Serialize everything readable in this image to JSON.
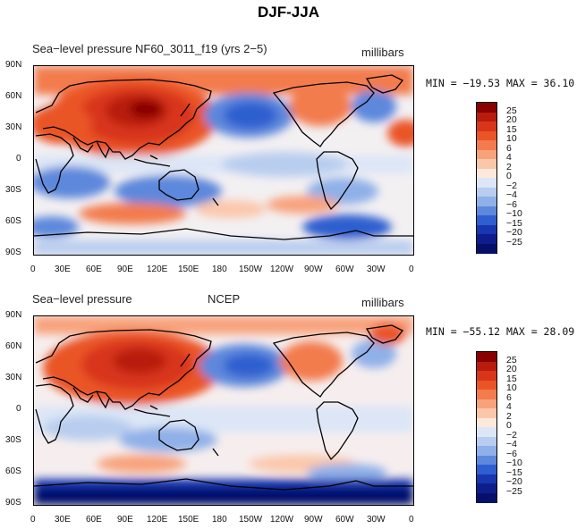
{
  "title": "DJF-JJA",
  "colorbar_levels": [
    "25",
    "20",
    "15",
    "10",
    "6",
    "4",
    "2",
    "0",
    "−2",
    "−4",
    "−6",
    "−10",
    "−15",
    "−20",
    "−25"
  ],
  "colorbar_colors": [
    "#8a0000",
    "#b81c0c",
    "#d8361a",
    "#ea5527",
    "#f37b4e",
    "#f8a27b",
    "#fbc7ab",
    "#fde9dc",
    "#dce6f6",
    "#b8cdef",
    "#8fb0e8",
    "#5d88dc",
    "#2e5ecf",
    "#1736b0",
    "#0d1e8c",
    "#06106a"
  ],
  "x_ticks": [
    "0",
    "30E",
    "60E",
    "90E",
    "120E",
    "150E",
    "180",
    "150W",
    "120W",
    "90W",
    "60W",
    "30W",
    "0"
  ],
  "y_ticks": [
    "90N",
    "60N",
    "30N",
    "0",
    "30S",
    "60S",
    "90S"
  ],
  "panels": [
    {
      "left_label": "Sea−level pressure",
      "center_label": "NF60_3011_f19 (yrs 2−5)",
      "units": "millibars",
      "stats": "MIN = −19.53 MAX =  36.10"
    },
    {
      "left_label": "Sea−level pressure",
      "center_label": "NCEP",
      "units": "millibars",
      "stats": "MIN = −55.12 MAX =  28.09"
    }
  ]
}
